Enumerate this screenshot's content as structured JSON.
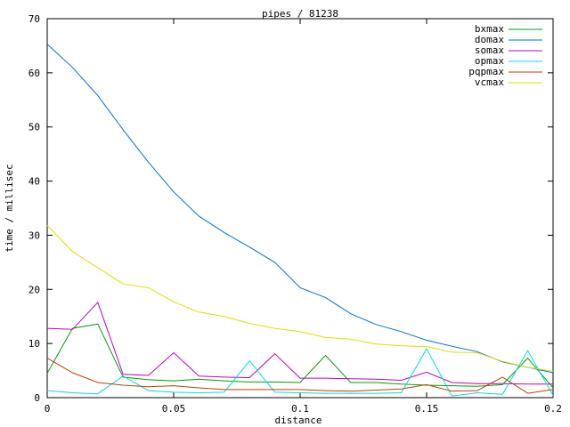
{
  "chart_data": {
    "type": "line",
    "title": "pipes / 81238",
    "xlabel": "distance",
    "ylabel": "time / millisec",
    "xlim": [
      0,
      0.2
    ],
    "ylim": [
      0,
      70
    ],
    "xticks": [
      0,
      0.05,
      0.1,
      0.15,
      0.2
    ],
    "xtick_labels": [
      "0",
      "0.05",
      "0.1",
      "0.15",
      "0.2"
    ],
    "yticks": [
      0,
      10,
      20,
      30,
      40,
      50,
      60,
      70
    ],
    "ytick_labels": [
      "0",
      "10",
      "20",
      "30",
      "40",
      "50",
      "60",
      "70"
    ],
    "legend_position": "top-right",
    "grid": false,
    "x": [
      0,
      0.01,
      0.02,
      0.03,
      0.04,
      0.05,
      0.06,
      0.07,
      0.08,
      0.09,
      0.1,
      0.11,
      0.12,
      0.13,
      0.14,
      0.15,
      0.16,
      0.17,
      0.18,
      0.19,
      0.2
    ],
    "series": [
      {
        "name": "bxmax",
        "color": "#00a000",
        "values": [
          4.5,
          12.8,
          13.6,
          3.8,
          3.3,
          3.1,
          3.4,
          3.1,
          2.9,
          2.9,
          2.8,
          7.8,
          2.8,
          2.8,
          2.5,
          2.3,
          2.2,
          2.1,
          2.4,
          7.3,
          1.8
        ]
      },
      {
        "name": "domax",
        "color": "#0070d0",
        "values": [
          65.3,
          61.0,
          55.8,
          49.5,
          43.5,
          38.0,
          33.5,
          30.5,
          27.8,
          25.0,
          20.3,
          18.5,
          15.5,
          13.5,
          12.2,
          10.6,
          9.5,
          8.5,
          6.6,
          5.6,
          4.6
        ]
      },
      {
        "name": "somax",
        "color": "#c000c0",
        "values": [
          12.8,
          12.6,
          17.6,
          4.3,
          4.1,
          8.3,
          4.0,
          3.8,
          3.7,
          8.1,
          3.6,
          3.6,
          3.5,
          3.4,
          3.2,
          4.7,
          2.8,
          2.6,
          2.6,
          2.5,
          2.5
        ]
      },
      {
        "name": "opmax",
        "color": "#00e0e0",
        "values": [
          1.3,
          0.9,
          0.7,
          4.0,
          1.3,
          1.0,
          0.9,
          1.0,
          6.8,
          1.0,
          0.9,
          0.8,
          0.8,
          0.8,
          0.9,
          9.0,
          0.3,
          0.9,
          0.6,
          8.7,
          0.4
        ]
      },
      {
        "name": "pqpmax",
        "color": "#c04000",
        "values": [
          7.3,
          4.6,
          2.8,
          2.3,
          2.0,
          2.2,
          1.8,
          1.5,
          1.5,
          1.5,
          1.5,
          1.3,
          1.2,
          1.4,
          1.6,
          2.4,
          1.2,
          1.3,
          3.8,
          0.8,
          1.5
        ]
      },
      {
        "name": "vcmax",
        "color": "#e0e000",
        "values": [
          31.8,
          27.0,
          24.0,
          21.0,
          20.3,
          17.7,
          15.8,
          15.0,
          13.7,
          12.8,
          12.2,
          11.1,
          10.8,
          9.9,
          9.6,
          9.4,
          8.4,
          8.3,
          6.7,
          5.6,
          4.9
        ]
      }
    ]
  }
}
